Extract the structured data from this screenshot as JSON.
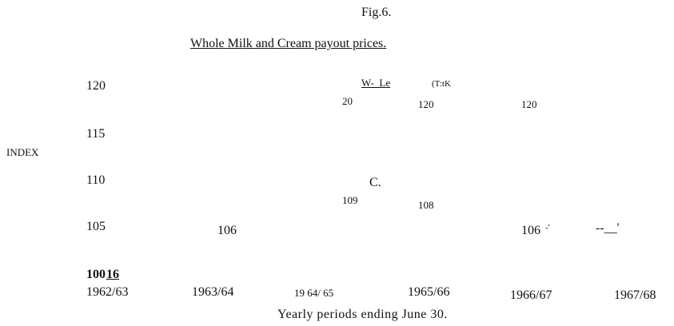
{
  "header": {
    "figure": "Fig.6.",
    "title": "Whole Milk and Cream payout prices."
  },
  "axis": {
    "y_label": "INDEX",
    "y_ticks": [
      "120",
      "115",
      "110",
      "105",
      "100"
    ],
    "y_tick_mark": "16",
    "x_labels": [
      "1962/63",
      "1963/64",
      "19 64/ 65",
      "1965/66",
      "1966/67",
      "1967/68"
    ],
    "caption": "Yearly periods ending June 30."
  },
  "annotations": [
    "W-_Le",
    "(T:tK",
    "20",
    "120",
    "120",
    "C.",
    "109",
    "108",
    "106",
    "106",
    "-'",
    "--__'"
  ]
}
